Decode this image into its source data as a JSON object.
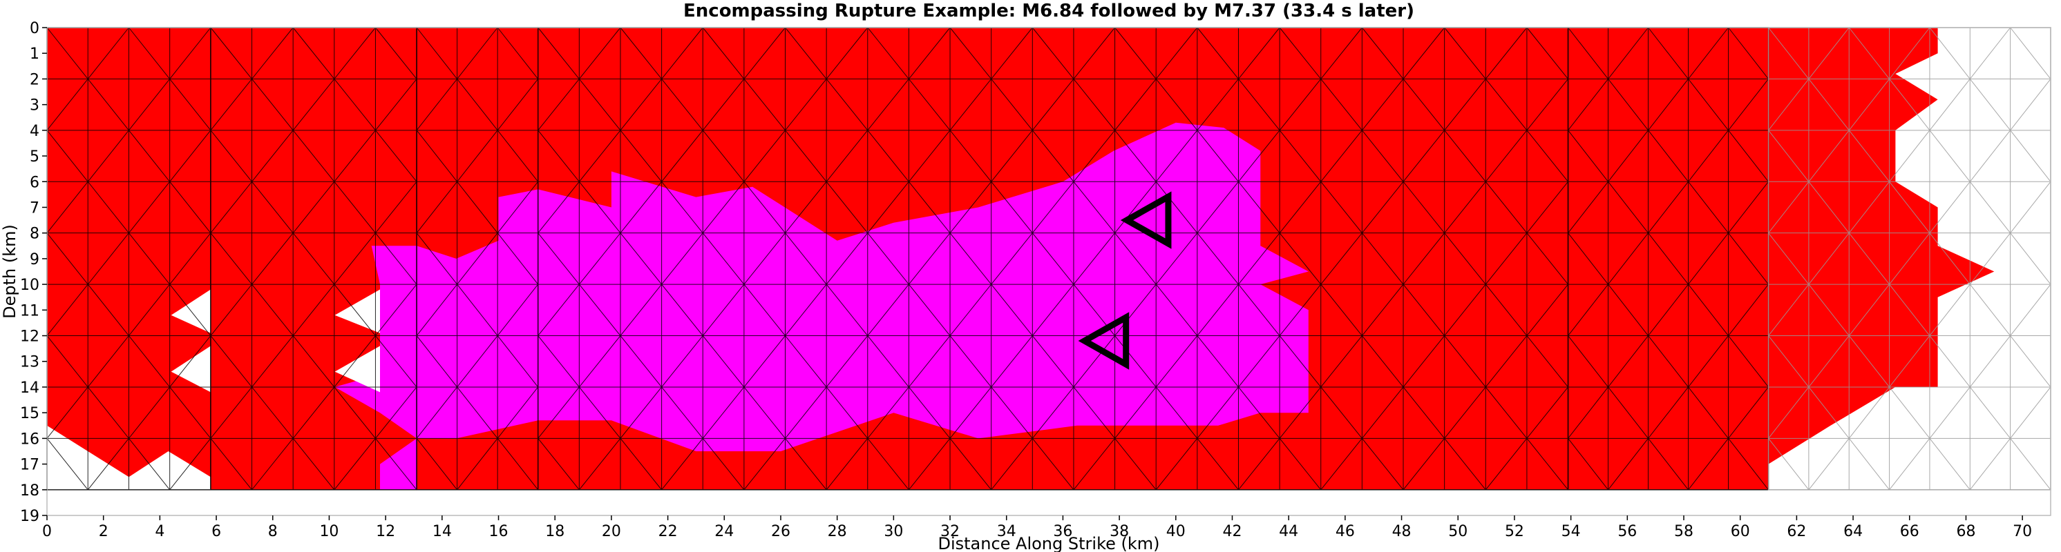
{
  "chart_data": {
    "type": "heatmap",
    "title": "Encompassing Rupture Example: M6.84 followed by M7.37 (33.4 s later)",
    "xlabel": "Distance Along Strike (km)",
    "ylabel": "Depth (km)",
    "xlim": [
      0,
      71
    ],
    "ylim": [
      19,
      0
    ],
    "x_ticks": [
      "0",
      "2",
      "4",
      "6",
      "8",
      "10",
      "12",
      "14",
      "16",
      "18",
      "20",
      "22",
      "24",
      "26",
      "28",
      "30",
      "32",
      "34",
      "36",
      "38",
      "40",
      "42",
      "44",
      "46",
      "48",
      "50",
      "52",
      "54",
      "56",
      "58",
      "60",
      "62",
      "64",
      "66",
      "68",
      "70"
    ],
    "y_ticks": [
      "0",
      "1",
      "2",
      "3",
      "4",
      "5",
      "6",
      "7",
      "8",
      "9",
      "10",
      "11",
      "12",
      "13",
      "14",
      "15",
      "16",
      "17",
      "18",
      "19"
    ],
    "grid": false,
    "mesh_depth_km": 18,
    "fault_sections_km": [
      [
        0,
        5.8
      ],
      [
        5.8,
        13.1
      ],
      [
        13.1,
        17.4
      ],
      [
        17.4,
        53.9
      ],
      [
        53.9,
        61.0
      ],
      [
        61.0,
        71.0
      ]
    ],
    "legend": [
      {
        "label": "",
        "color": "#ff0000"
      },
      {
        "label": "",
        "color": "#ff00ff"
      },
      {
        "label": "",
        "color": "#ffffff"
      }
    ],
    "regions": {
      "second_event_red": [
        [
          0,
          0
        ],
        [
          67,
          0
        ],
        [
          67,
          1
        ],
        [
          65.5,
          1.8
        ],
        [
          67,
          2.8
        ],
        [
          65.5,
          4
        ],
        [
          65.5,
          6
        ],
        [
          67,
          7
        ],
        [
          67,
          8.5
        ],
        [
          69,
          9.5
        ],
        [
          67,
          10.5
        ],
        [
          67,
          14
        ],
        [
          65.5,
          14
        ],
        [
          63.2,
          15.5
        ],
        [
          61,
          17
        ],
        [
          61,
          18
        ],
        [
          5.8,
          18
        ],
        [
          5.8,
          17.5
        ],
        [
          4.3,
          16.5
        ],
        [
          2.9,
          17.5
        ],
        [
          0,
          15.5
        ]
      ],
      "first_event_magenta": [
        [
          11.5,
          8.5
        ],
        [
          13.1,
          8.5
        ],
        [
          14.5,
          9
        ],
        [
          16,
          8.3
        ],
        [
          16,
          6.6
        ],
        [
          17.4,
          6.3
        ],
        [
          20,
          7
        ],
        [
          20,
          5.6
        ],
        [
          23,
          6.6
        ],
        [
          25,
          6.2
        ],
        [
          28,
          8.3
        ],
        [
          30,
          7.6
        ],
        [
          33,
          7
        ],
        [
          36,
          6
        ],
        [
          37.8,
          4.8
        ],
        [
          40,
          3.7
        ],
        [
          41.7,
          3.9
        ],
        [
          43,
          4.8
        ],
        [
          43,
          7
        ],
        [
          43,
          8.5
        ],
        [
          44.7,
          9.5
        ],
        [
          43,
          10
        ],
        [
          44.7,
          11
        ],
        [
          44.7,
          15
        ],
        [
          43,
          15
        ],
        [
          41.5,
          15.5
        ],
        [
          40,
          15.5
        ],
        [
          36.5,
          15.5
        ],
        [
          33,
          16
        ],
        [
          30,
          15
        ],
        [
          26,
          16.5
        ],
        [
          23,
          16.5
        ],
        [
          20,
          15.3
        ],
        [
          17.4,
          15.3
        ],
        [
          14.5,
          16
        ],
        [
          13.1,
          16
        ],
        [
          13.1,
          18
        ],
        [
          11.8,
          18
        ],
        [
          11.8,
          17
        ],
        [
          13.1,
          16
        ],
        [
          11.8,
          15
        ],
        [
          10.2,
          14
        ],
        [
          11.8,
          13.5
        ],
        [
          11.8,
          12
        ],
        [
          11.8,
          10
        ]
      ],
      "white_holes": [
        [
          [
            5.8,
            10.2
          ],
          [
            4.4,
            11.2
          ],
          [
            5.8,
            11.9
          ]
        ],
        [
          [
            5.8,
            12.4
          ],
          [
            4.4,
            13.4
          ],
          [
            5.8,
            14.2
          ]
        ],
        [
          [
            11.8,
            10.2
          ],
          [
            10.2,
            11.2
          ],
          [
            11.8,
            11.9
          ]
        ],
        [
          [
            11.8,
            12.4
          ],
          [
            10.2,
            13.4
          ],
          [
            11.8,
            14.2
          ]
        ]
      ]
    },
    "hypocenters": [
      {
        "x": 39,
        "y": 7.5,
        "event": "M6.84"
      },
      {
        "x": 37.5,
        "y": 12.2,
        "event": "M7.37"
      }
    ]
  }
}
